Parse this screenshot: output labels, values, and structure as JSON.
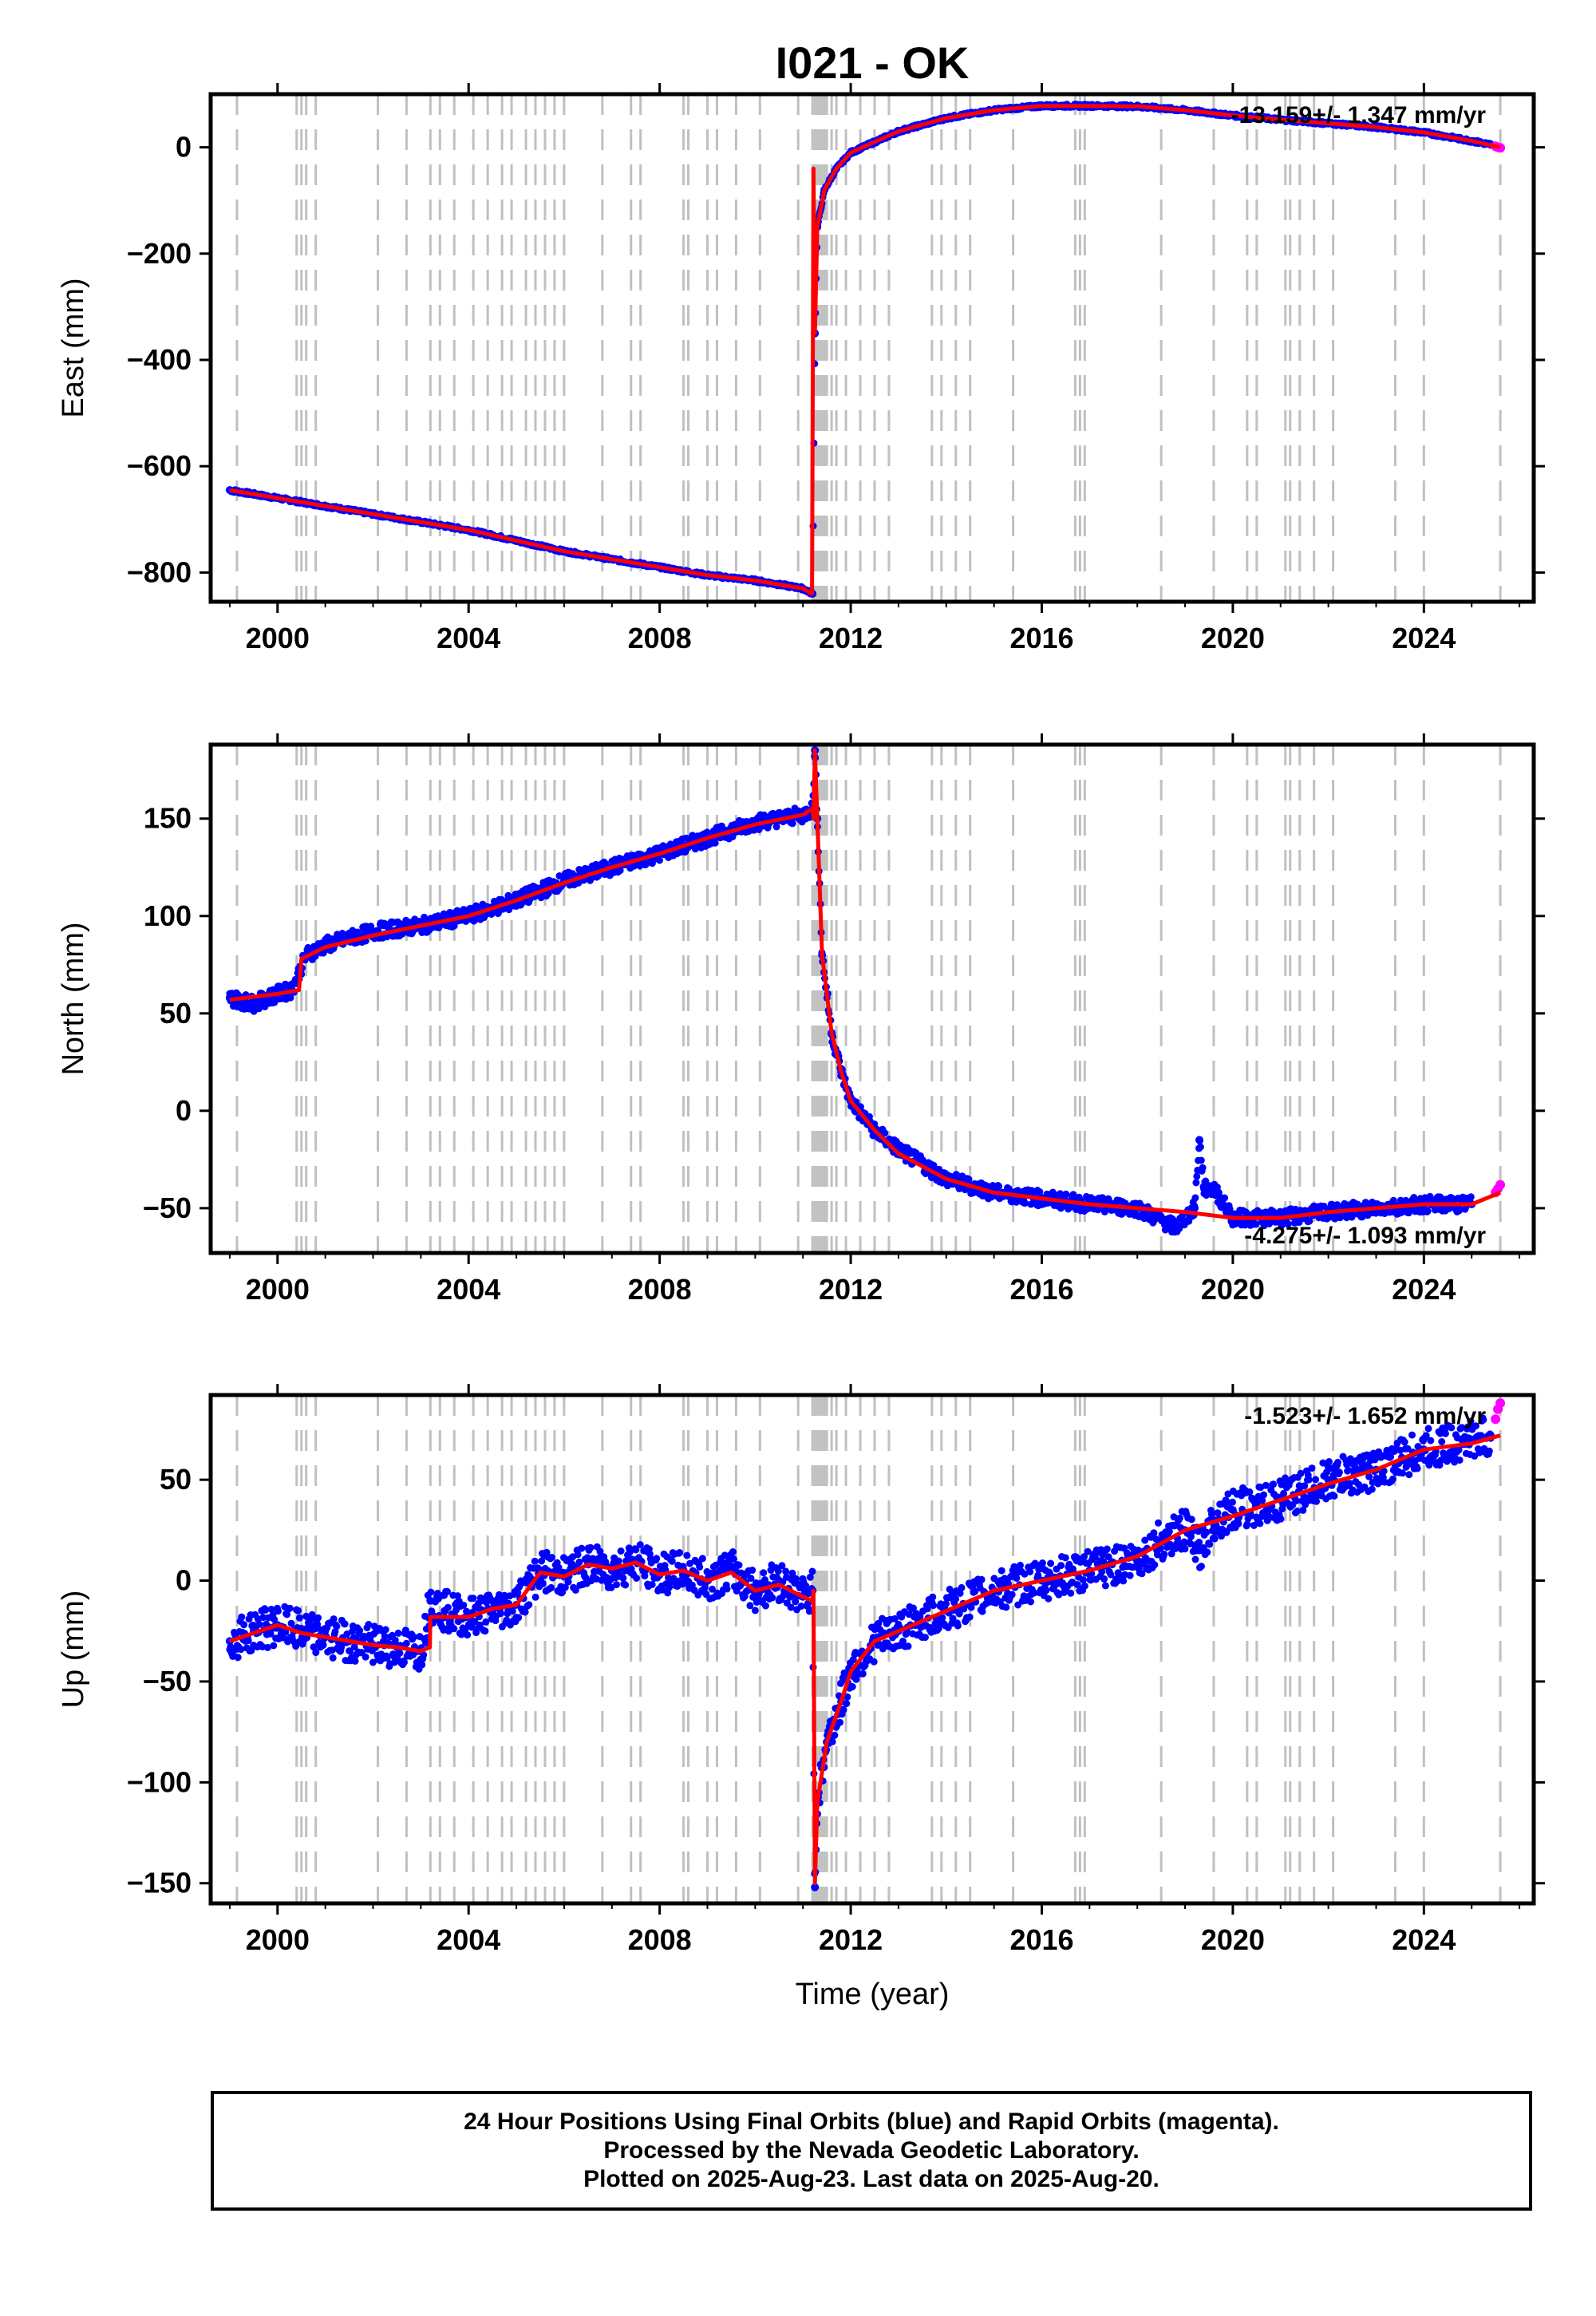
{
  "title": "I021 - OK",
  "colors": {
    "final": "#0000ff",
    "rapid": "#ff00ff",
    "model": "#ff0000",
    "steps": "#c0c0c0"
  },
  "footer": {
    "line1": "24 Hour Positions Using Final Orbits (blue) and Rapid Orbits (magenta).",
    "line2": "Processed by the Nevada Geodetic Laboratory.",
    "line3": "Plotted on 2025-Aug-23. Last data on 2025-Aug-20."
  },
  "chart_data": [
    {
      "type": "scatter",
      "ylabel": "East (mm)",
      "xlabel": "",
      "xlim": [
        1998.6,
        2026.3
      ],
      "ylim": [
        -855,
        100
      ],
      "xticks": [
        "2000",
        "2004",
        "2008",
        "2012",
        "2016",
        "2020",
        "2024"
      ],
      "yticks": [
        "0",
        "-200",
        "-400",
        "-600",
        "-800"
      ],
      "rate": "-13.159+/- 1.347 mm/yr",
      "series": [
        {
          "kind": "final",
          "color": "#0000ff",
          "x": [
            1999.0,
            2000.0,
            2001.0,
            2002.0,
            2003.0,
            2004.0,
            2005.0,
            2006.0,
            2007.0,
            2008.0,
            2009.0,
            2010.0,
            2011.0,
            2011.2,
            2011.25,
            2011.3,
            2011.45,
            2011.7,
            2012.0,
            2012.5,
            2013.0,
            2014.0,
            2015.0,
            2016.0,
            2017.0,
            2018.0,
            2019.0,
            2020.0,
            2021.0,
            2022.0,
            2023.0,
            2024.0,
            2025.0,
            2025.4
          ],
          "y": [
            -645,
            -660,
            -675,
            -690,
            -705,
            -720,
            -740,
            -760,
            -775,
            -790,
            -805,
            -815,
            -830,
            -840,
            -350,
            -150,
            -80,
            -40,
            -10,
            10,
            30,
            55,
            70,
            78,
            78,
            77,
            70,
            60,
            52,
            45,
            38,
            28,
            12,
            5
          ]
        },
        {
          "kind": "rapid",
          "color": "#ff00ff",
          "x": [
            2025.5,
            2025.55,
            2025.6
          ],
          "y": [
            2,
            0,
            -1
          ]
        },
        {
          "kind": "model",
          "color": "#ff0000",
          "x": [
            1999.0,
            2000.0,
            2001.0,
            2002.0,
            2003.0,
            2004.0,
            2005.0,
            2006.0,
            2007.0,
            2008.0,
            2009.0,
            2010.0,
            2011.0,
            2011.19,
            2011.22,
            2011.25,
            2011.3,
            2011.45,
            2011.7,
            2012.0,
            2012.5,
            2013.0,
            2014.0,
            2015.0,
            2016.0,
            2017.0,
            2018.0,
            2019.0,
            2020.0,
            2021.0,
            2022.0,
            2023.0,
            2024.0,
            2025.0,
            2025.6
          ],
          "y": [
            -645,
            -660,
            -675,
            -690,
            -705,
            -720,
            -740,
            -760,
            -775,
            -790,
            -805,
            -815,
            -830,
            -840,
            -40,
            -350,
            -150,
            -80,
            -40,
            -10,
            10,
            30,
            55,
            70,
            78,
            78,
            77,
            70,
            60,
            52,
            45,
            38,
            28,
            12,
            0
          ]
        }
      ]
    },
    {
      "type": "scatter",
      "ylabel": "North (mm)",
      "xlabel": "",
      "xlim": [
        1998.6,
        2026.3
      ],
      "ylim": [
        -73,
        188
      ],
      "xticks": [
        "2000",
        "2004",
        "2008",
        "2012",
        "2016",
        "2020",
        "2024"
      ],
      "yticks": [
        "150",
        "100",
        "50",
        "0",
        "-50"
      ],
      "rate": "-4.275+/- 1.093 mm/yr",
      "series": [
        {
          "kind": "final",
          "color": "#0000ff",
          "x": [
            1999.0,
            1999.5,
            2000.0,
            2000.3,
            2000.6,
            2001.0,
            2002.0,
            2003.0,
            2004.0,
            2005.0,
            2006.0,
            2007.0,
            2008.0,
            2009.0,
            2010.0,
            2011.0,
            2011.2,
            2011.25,
            2011.3,
            2011.4,
            2011.6,
            2011.8,
            2012.0,
            2012.5,
            2013.0,
            2014.0,
            2015.0,
            2016.0,
            2017.0,
            2018.0,
            2018.8,
            2019.2,
            2019.3,
            2019.4,
            2019.6,
            2020.0,
            2021.0,
            2022.0,
            2023.0,
            2024.0,
            2025.0
          ],
          "y": [
            58,
            55,
            60,
            62,
            80,
            85,
            92,
            95,
            100,
            108,
            118,
            125,
            132,
            140,
            148,
            152,
            155,
            185,
            150,
            80,
            40,
            20,
            5,
            -10,
            -20,
            -35,
            -42,
            -45,
            -48,
            -50,
            -60,
            -50,
            -15,
            -40,
            -40,
            -55,
            -55,
            -52,
            -50,
            -48,
            -48
          ]
        },
        {
          "kind": "rapid",
          "color": "#ff00ff",
          "x": [
            2025.5,
            2025.55,
            2025.6
          ],
          "y": [
            -42,
            -40,
            -38
          ]
        },
        {
          "kind": "model",
          "color": "#ff0000",
          "x": [
            1999.0,
            2000.0,
            2000.45,
            2000.5,
            2001.0,
            2002.0,
            2003.0,
            2004.0,
            2005.0,
            2006.0,
            2007.0,
            2008.0,
            2009.0,
            2010.0,
            2011.0,
            2011.19,
            2011.22,
            2011.25,
            2011.3,
            2011.4,
            2011.6,
            2011.8,
            2012.0,
            2012.5,
            2013.0,
            2014.0,
            2015.0,
            2016.0,
            2017.0,
            2018.0,
            2019.0,
            2020.0,
            2021.0,
            2022.0,
            2023.0,
            2024.0,
            2025.0,
            2025.6
          ],
          "y": [
            57,
            60,
            62,
            78,
            84,
            90,
            95,
            100,
            108,
            117,
            125,
            132,
            140,
            147,
            152,
            155,
            150,
            185,
            150,
            80,
            40,
            20,
            5,
            -10,
            -22,
            -35,
            -42,
            -45,
            -48,
            -50,
            -52,
            -55,
            -55,
            -52,
            -50,
            -48,
            -48,
            -42
          ]
        }
      ]
    },
    {
      "type": "scatter",
      "ylabel": "Up (mm)",
      "xlabel": "Time (year)",
      "xlim": [
        1998.6,
        2026.3
      ],
      "ylim": [
        -160,
        92
      ],
      "xticks": [
        "2000",
        "2004",
        "2008",
        "2012",
        "2016",
        "2020",
        "2024"
      ],
      "yticks": [
        "50",
        "0",
        "-50",
        "-100",
        "-150"
      ],
      "rate": "-1.523+/- 1.652 mm/yr",
      "series": [
        {
          "kind": "final",
          "color": "#0000ff",
          "x": [
            1999.0,
            1999.5,
            2000.0,
            2000.5,
            2001.0,
            2001.5,
            2002.0,
            2002.5,
            2003.0,
            2003.2,
            2003.5,
            2004.0,
            2004.5,
            2005.0,
            2005.5,
            2006.0,
            2006.5,
            2007.0,
            2007.5,
            2008.0,
            2008.5,
            2009.0,
            2009.5,
            2010.0,
            2010.5,
            2011.0,
            2011.2,
            2011.25,
            2011.3,
            2011.5,
            2011.8,
            2012.0,
            2012.5,
            2013.0,
            2014.0,
            2015.0,
            2016.0,
            2017.0,
            2018.0,
            2018.5,
            2019.0,
            2019.3,
            2019.6,
            2020.0,
            2021.0,
            2022.0,
            2023.0,
            2024.0,
            2025.0,
            2025.4
          ],
          "y": [
            -30,
            -25,
            -22,
            -25,
            -28,
            -30,
            -32,
            -33,
            -35,
            -10,
            -15,
            -18,
            -15,
            -12,
            5,
            2,
            8,
            5,
            10,
            3,
            5,
            0,
            5,
            -5,
            0,
            -8,
            -5,
            -152,
            -110,
            -80,
            -60,
            -45,
            -30,
            -25,
            -15,
            -5,
            0,
            5,
            10,
            20,
            25,
            15,
            30,
            35,
            40,
            50,
            55,
            65,
            70,
            72
          ]
        },
        {
          "kind": "rapid",
          "color": "#ff00ff",
          "x": [
            2025.5,
            2025.55,
            2025.6
          ],
          "y": [
            80,
            85,
            88
          ]
        },
        {
          "kind": "model",
          "color": "#ff0000",
          "x": [
            1999.0,
            1999.5,
            2000.0,
            2000.5,
            2001.0,
            2001.5,
            2002.0,
            2002.5,
            2003.0,
            2003.19,
            2003.2,
            2004.0,
            2004.5,
            2005.0,
            2005.5,
            2006.0,
            2006.5,
            2007.0,
            2007.5,
            2008.0,
            2008.5,
            2009.0,
            2009.5,
            2010.0,
            2010.5,
            2011.0,
            2011.19,
            2011.22,
            2011.25,
            2011.3,
            2011.5,
            2011.8,
            2012.0,
            2012.5,
            2013.0,
            2014.0,
            2015.0,
            2016.0,
            2017.0,
            2018.0,
            2019.0,
            2020.0,
            2021.0,
            2022.0,
            2023.0,
            2024.0,
            2025.0,
            2025.6
          ],
          "y": [
            -30,
            -26,
            -22,
            -26,
            -28,
            -30,
            -32,
            -33,
            -35,
            -33,
            -18,
            -18,
            -14,
            -12,
            4,
            2,
            8,
            6,
            9,
            3,
            5,
            0,
            4,
            -5,
            -2,
            -8,
            -10,
            -5,
            -150,
            -110,
            -80,
            -60,
            -45,
            -30,
            -25,
            -15,
            -5,
            0,
            5,
            12,
            25,
            32,
            40,
            48,
            55,
            65,
            68,
            72
          ]
        }
      ]
    }
  ]
}
